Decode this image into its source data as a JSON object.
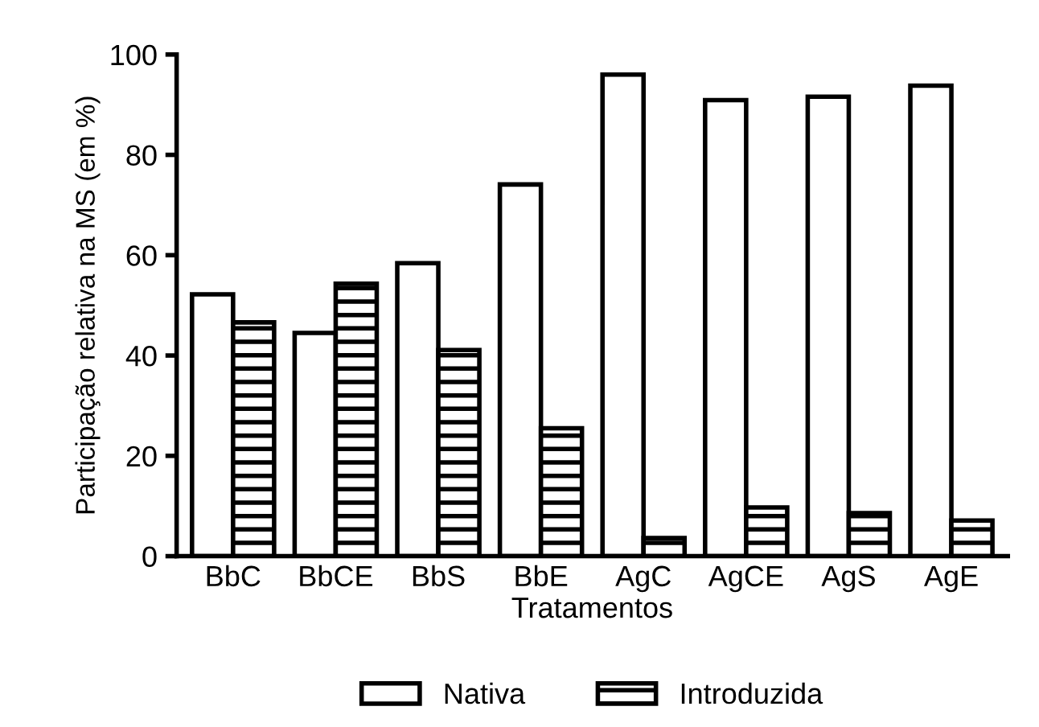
{
  "chart_data": {
    "type": "bar",
    "xlabel": "Tratamentos",
    "ylabel": "Participação relativa na MS (em %)",
    "categories": [
      "BbC",
      "BbCE",
      "BbS",
      "BbE",
      "AgC",
      "AgCE",
      "AgS",
      "AgE"
    ],
    "series": [
      {
        "name": "Nativa",
        "color": "#ffffff",
        "values": [
          52.2,
          44.5,
          58.4,
          74.1,
          96.0,
          90.9,
          91.6,
          93.8
        ]
      },
      {
        "name": "Introduzida",
        "color": "#000000",
        "values": [
          46.6,
          54.3,
          41.1,
          25.5,
          3.6,
          9.7,
          8.6,
          7.1
        ]
      }
    ],
    "ylim": [
      0,
      100
    ],
    "yticks": [
      0,
      20,
      40,
      60,
      80,
      100
    ],
    "grid": false,
    "legend": "bottom"
  }
}
